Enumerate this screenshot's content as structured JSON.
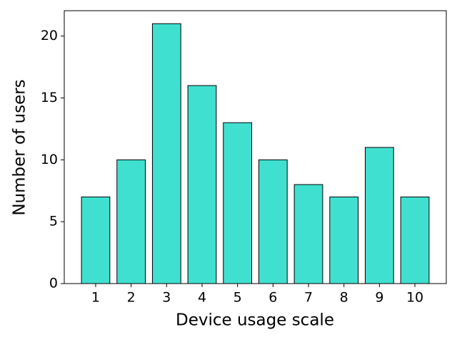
{
  "chart_data": {
    "type": "bar",
    "x_label": "Device usage scale",
    "y_label": "Number of users",
    "categories": [
      "1",
      "2",
      "3",
      "4",
      "5",
      "6",
      "7",
      "8",
      "9",
      "10"
    ],
    "values": [
      7,
      10,
      21,
      16,
      13,
      10,
      8,
      7,
      11,
      7
    ],
    "color": "#40e0d0",
    "ylim": [
      0,
      22.05
    ],
    "yticks": [
      0,
      5,
      10,
      15,
      20
    ],
    "grid": false
  }
}
